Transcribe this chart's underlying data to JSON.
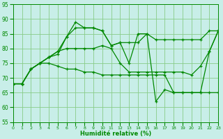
{
  "bg_color": "#c8eee8",
  "grid_color": "#88cc88",
  "line_color": "#008800",
  "xlabel": "Humidité relative (%)",
  "xlabel_color": "#008800",
  "xlim": [
    0,
    23
  ],
  "ylim": [
    55,
    95
  ],
  "yticks": [
    55,
    60,
    65,
    70,
    75,
    80,
    85,
    90,
    95
  ],
  "xticks": [
    0,
    1,
    2,
    3,
    4,
    5,
    6,
    7,
    8,
    9,
    10,
    11,
    12,
    13,
    14,
    15,
    16,
    17,
    18,
    19,
    20,
    21,
    22,
    23
  ],
  "series": [
    [
      68,
      68,
      73,
      75,
      77,
      78,
      84,
      89,
      87,
      87,
      86,
      81,
      82,
      75,
      85,
      85,
      62,
      66,
      65,
      65,
      65,
      65,
      79,
      86
    ],
    [
      68,
      68,
      73,
      75,
      77,
      79,
      84,
      87,
      87,
      87,
      86,
      81,
      82,
      82,
      82,
      85,
      83,
      83,
      83,
      83,
      83,
      83,
      86,
      86
    ],
    [
      68,
      68,
      73,
      75,
      77,
      79,
      80,
      80,
      80,
      80,
      81,
      80,
      75,
      72,
      72,
      72,
      72,
      72,
      72,
      72,
      71,
      74,
      79,
      86
    ],
    [
      68,
      68,
      73,
      75,
      75,
      74,
      73,
      73,
      72,
      72,
      71,
      71,
      71,
      71,
      71,
      71,
      71,
      71,
      65,
      65,
      65,
      65,
      65,
      65
    ]
  ]
}
